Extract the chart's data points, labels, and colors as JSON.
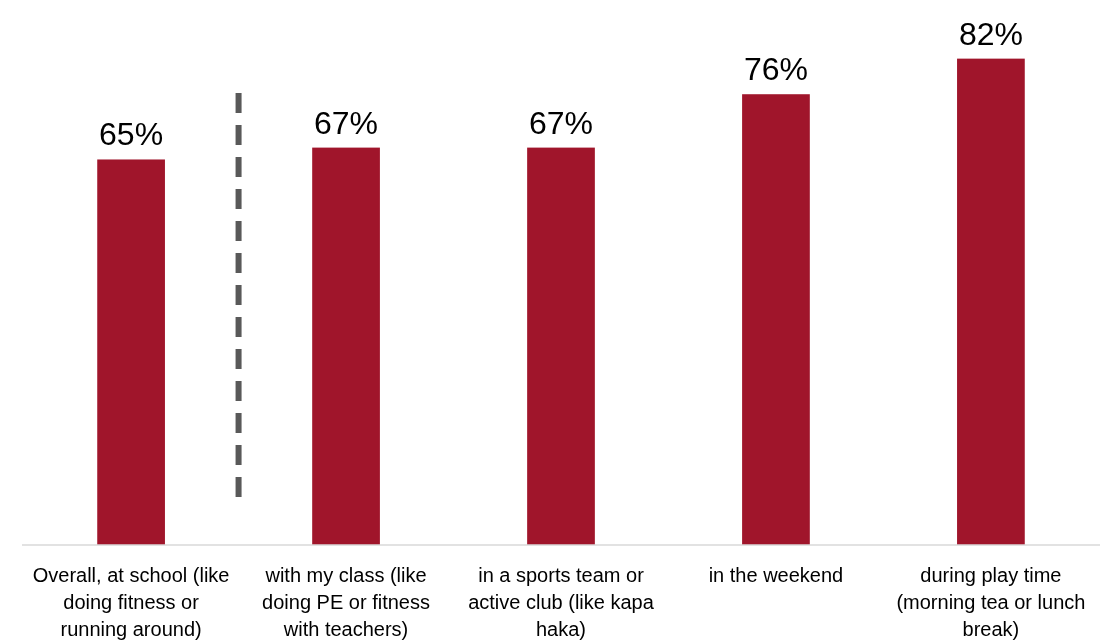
{
  "chart_data": {
    "type": "bar",
    "categories": [
      "Overall, at school (like doing fitness or running around)",
      "with my class (like doing PE or fitness with teachers)",
      "in a sports team or active club (like kapa haka)",
      "in the weekend",
      "during play time (morning tea or lunch break)"
    ],
    "values": [
      65,
      67,
      67,
      76,
      82
    ],
    "color": "#a0152b",
    "tick_labels": "x",
    "data_labels": true,
    "value_labels": [
      "65%",
      "67%",
      "67%",
      "76%",
      "82%"
    ]
  }
}
